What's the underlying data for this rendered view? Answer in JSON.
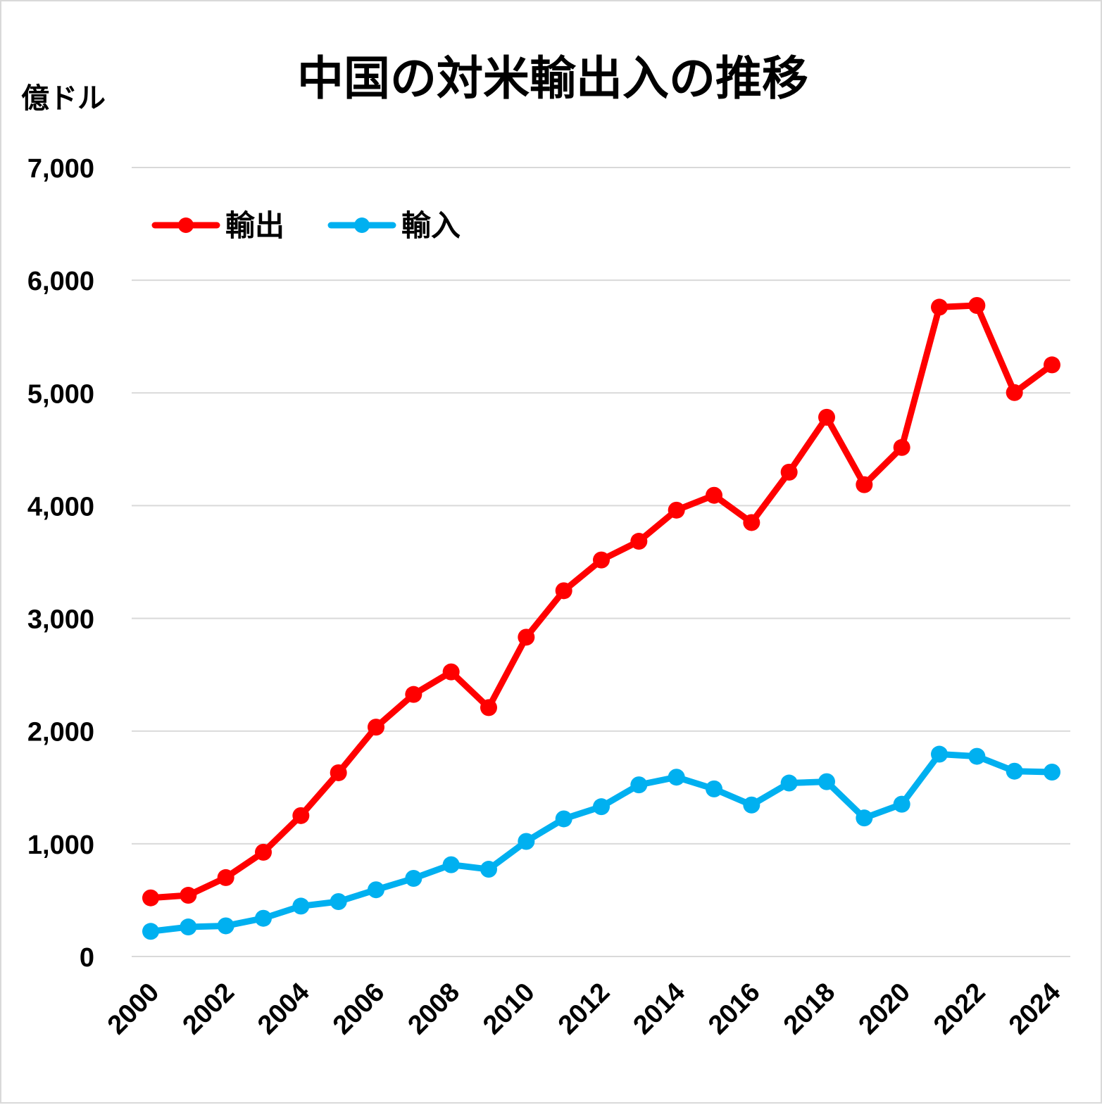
{
  "chart_data": {
    "type": "line",
    "title": "中国の対米輸出入の推移",
    "ylabel": "億ドル",
    "xlabel": "",
    "ylim": [
      0,
      7000
    ],
    "yticks": [
      0,
      1000,
      2000,
      3000,
      4000,
      5000,
      6000,
      7000
    ],
    "ytick_labels": [
      "0",
      "1,000",
      "2,000",
      "3,000",
      "4,000",
      "5,000",
      "6,000",
      "7,000"
    ],
    "x": [
      2000,
      2001,
      2002,
      2003,
      2004,
      2005,
      2006,
      2007,
      2008,
      2009,
      2010,
      2011,
      2012,
      2013,
      2014,
      2015,
      2016,
      2017,
      2018,
      2019,
      2020,
      2021,
      2022,
      2023,
      2024
    ],
    "xtick_labels": [
      "2000",
      "2002",
      "2004",
      "2006",
      "2008",
      "2010",
      "2012",
      "2014",
      "2016",
      "2018",
      "2020",
      "2022",
      "2024"
    ],
    "grid": true,
    "legend_position": "top-left",
    "series": [
      {
        "name": "輸出",
        "color": "#ff0000",
        "values": [
          520,
          543,
          700,
          925,
          1250,
          1630,
          2035,
          2325,
          2525,
          2208,
          2833,
          3245,
          3518,
          3684,
          3960,
          4092,
          3850,
          4297,
          4784,
          4186,
          4516,
          5761,
          5776,
          5003,
          5249
        ]
      },
      {
        "name": "輸入",
        "color": "#00b0f0",
        "values": [
          223,
          262,
          272,
          339,
          447,
          487,
          592,
          693,
          814,
          774,
          1021,
          1221,
          1329,
          1523,
          1591,
          1487,
          1344,
          1539,
          1551,
          1229,
          1351,
          1795,
          1776,
          1644,
          1636
        ]
      }
    ]
  }
}
